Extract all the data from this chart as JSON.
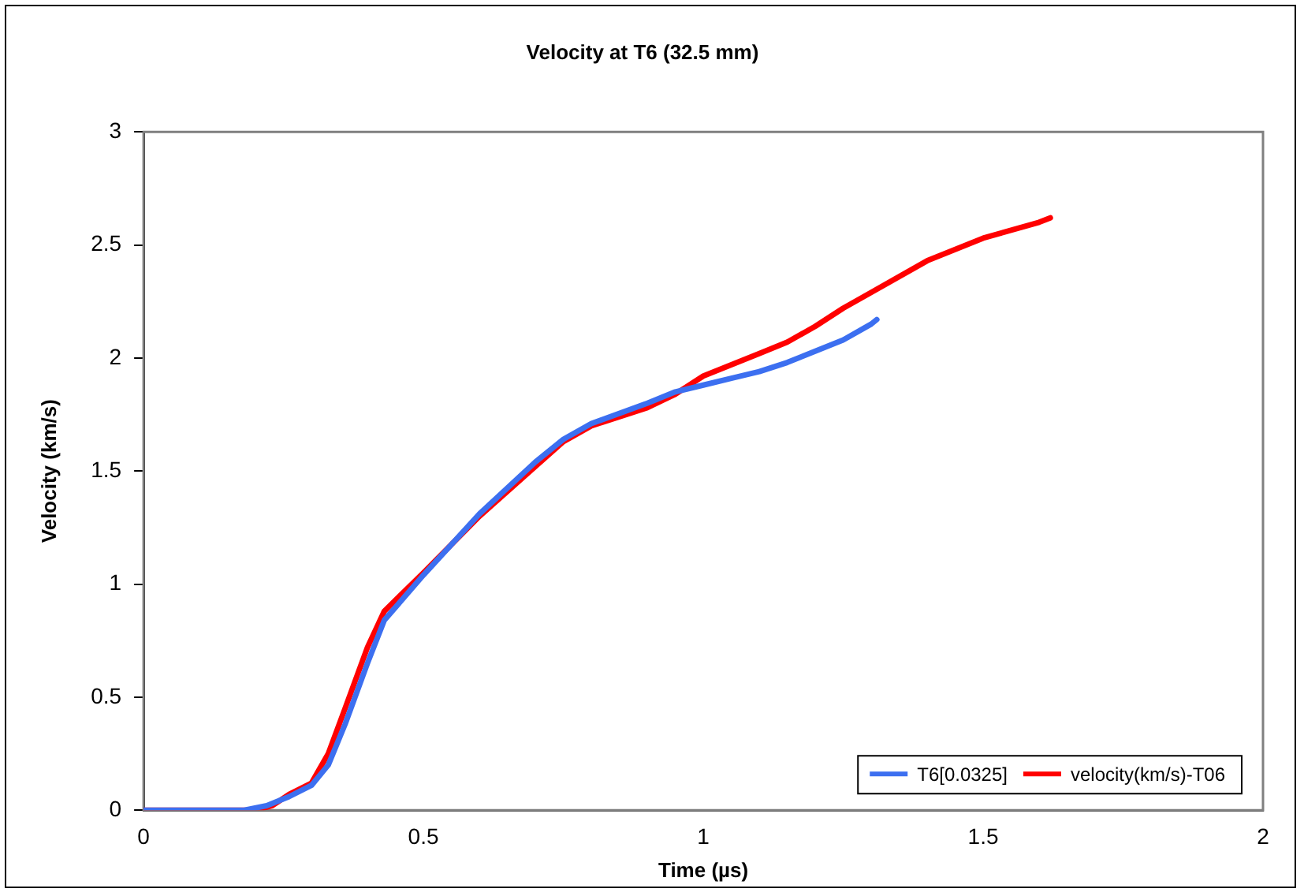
{
  "chart_data": {
    "type": "line",
    "title": "Velocity at T6 (32.5 mm)",
    "xlabel": "Time (µs)",
    "ylabel": "Velocity (km/s)",
    "xlim": [
      0,
      2
    ],
    "xticks": [
      0,
      0.5,
      1,
      1.5,
      2
    ],
    "ylim": [
      0,
      3
    ],
    "yticks": [
      0,
      0.5,
      1,
      1.5,
      2,
      2.5,
      3
    ],
    "grid": false,
    "legend": "bottom right",
    "marker": "none",
    "line_style": "solid",
    "series": [
      {
        "name": "T6[0.0325]",
        "color": "#3c6ff0",
        "x": [
          0,
          0.18,
          0.22,
          0.26,
          0.3,
          0.33,
          0.36,
          0.4,
          0.43,
          0.5,
          0.6,
          0.7,
          0.75,
          0.8,
          0.9,
          0.95,
          1.0,
          1.05,
          1.1,
          1.15,
          1.2,
          1.25,
          1.3,
          1.31
        ],
        "values": [
          0,
          0,
          0.02,
          0.06,
          0.11,
          0.2,
          0.38,
          0.65,
          0.84,
          1.04,
          1.31,
          1.54,
          1.64,
          1.71,
          1.8,
          1.85,
          1.88,
          1.91,
          1.94,
          1.98,
          2.03,
          2.08,
          2.15,
          2.17
        ]
      },
      {
        "name": "velocity(km/s)-T06",
        "color": "#ff0000",
        "x": [
          0,
          0.2,
          0.23,
          0.26,
          0.3,
          0.33,
          0.36,
          0.4,
          0.43,
          0.5,
          0.6,
          0.7,
          0.75,
          0.8,
          0.9,
          0.95,
          1.0,
          1.05,
          1.1,
          1.15,
          1.2,
          1.25,
          1.3,
          1.4,
          1.5,
          1.6,
          1.62
        ],
        "values": [
          0,
          0,
          0.02,
          0.07,
          0.12,
          0.25,
          0.45,
          0.72,
          0.88,
          1.05,
          1.3,
          1.52,
          1.63,
          1.7,
          1.78,
          1.84,
          1.92,
          1.97,
          2.02,
          2.07,
          2.14,
          2.22,
          2.29,
          2.43,
          2.53,
          2.6,
          2.62
        ]
      }
    ]
  }
}
